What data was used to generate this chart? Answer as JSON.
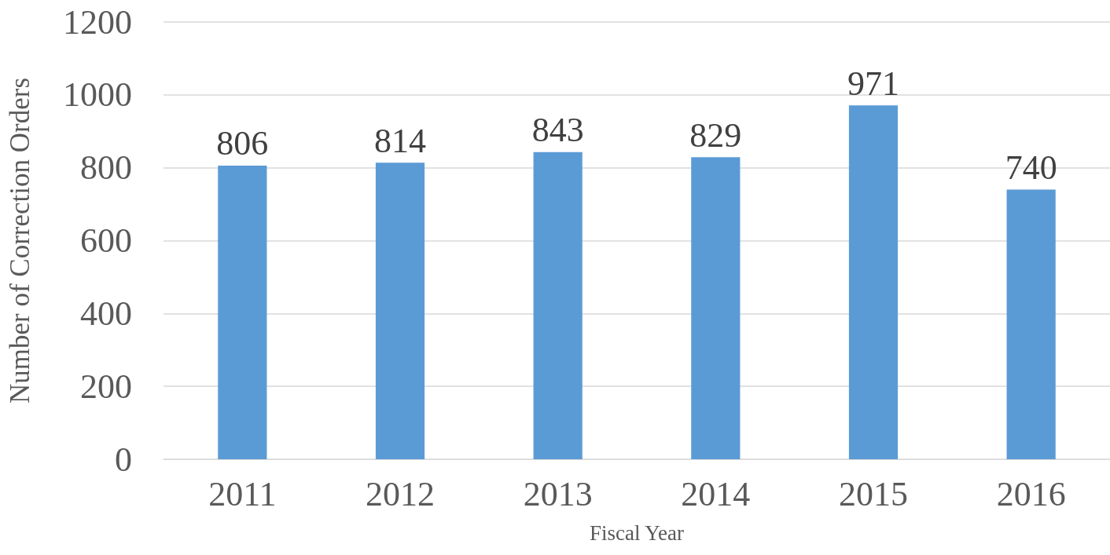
{
  "chart_data": {
    "type": "bar",
    "xlabel": "Fiscal Year",
    "ylabel": "Number of Correction Orders",
    "categories": [
      "2011",
      "2012",
      "2013",
      "2014",
      "2015",
      "2016"
    ],
    "values": [
      806,
      814,
      843,
      829,
      971,
      740
    ],
    "color": "#5b9bd5",
    "ylim": [
      0,
      1200
    ],
    "yticks": [
      0,
      200,
      400,
      600,
      800,
      1000,
      1200
    ],
    "grid": "y",
    "data_labels": true
  }
}
